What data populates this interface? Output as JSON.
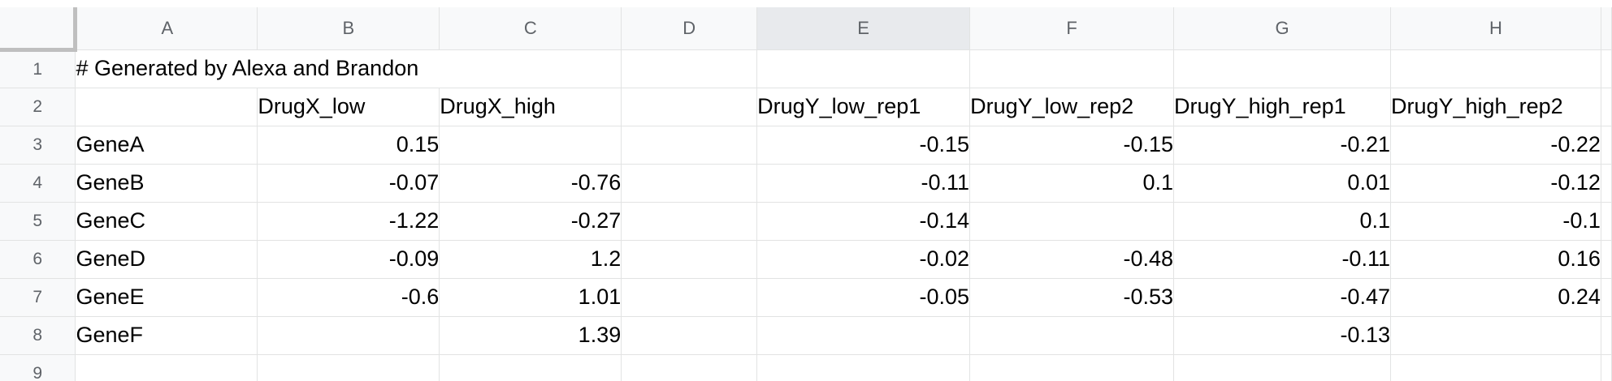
{
  "columns": [
    "A",
    "B",
    "C",
    "D",
    "E",
    "F",
    "G",
    "H"
  ],
  "selected_column": "E",
  "rows": [
    {
      "row": "1",
      "cells": [
        "# Generated by Alexa and Brandon",
        "",
        "",
        "",
        "",
        "",
        "",
        ""
      ]
    },
    {
      "row": "2",
      "cells": [
        "",
        "DrugX_low",
        "DrugX_high",
        "",
        "DrugY_low_rep1",
        "DrugY_low_rep2",
        "DrugY_high_rep1",
        "DrugY_high_rep2"
      ]
    },
    {
      "row": "3",
      "cells": [
        "GeneA",
        "0.15",
        "",
        "",
        "-0.15",
        "-0.15",
        "-0.21",
        "-0.22"
      ]
    },
    {
      "row": "4",
      "cells": [
        "GeneB",
        "-0.07",
        "-0.76",
        "",
        "-0.11",
        "0.1",
        "0.01",
        "-0.12"
      ]
    },
    {
      "row": "5",
      "cells": [
        "GeneC",
        "-1.22",
        "-0.27",
        "",
        "-0.14",
        "",
        "0.1",
        "-0.1"
      ]
    },
    {
      "row": "6",
      "cells": [
        "GeneD",
        "-0.09",
        "1.2",
        "",
        "-0.02",
        "-0.48",
        "-0.11",
        "0.16"
      ]
    },
    {
      "row": "7",
      "cells": [
        "GeneE",
        "-0.6",
        "1.01",
        "",
        "-0.05",
        "-0.53",
        "-0.47",
        "0.24"
      ]
    },
    {
      "row": "8",
      "cells": [
        "GeneF",
        "",
        "1.39",
        "",
        "",
        "",
        "-0.13",
        ""
      ]
    },
    {
      "row": "9",
      "cells": [
        "",
        "",
        "",
        "",
        "",
        "",
        "",
        ""
      ]
    }
  ]
}
